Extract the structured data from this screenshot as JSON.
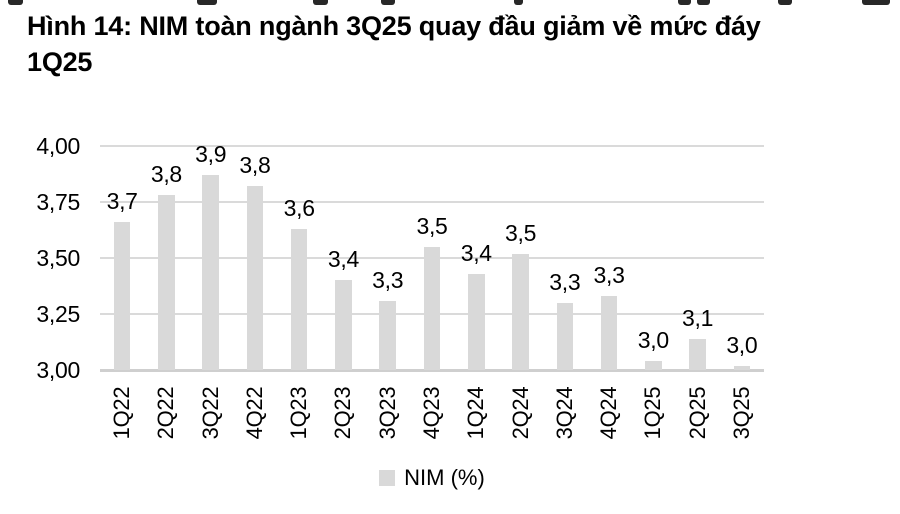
{
  "title": {
    "line1": "Hình 14: NIM toàn ngành 3Q25 quay đầu giảm về mức đáy",
    "line2": "1Q25"
  },
  "chart_data": {
    "type": "bar",
    "title": "Hình 14: NIM toàn ngành 3Q25 quay đầu giảm về mức đáy 1Q25",
    "categories": [
      "1Q22",
      "2Q22",
      "3Q22",
      "4Q22",
      "1Q23",
      "2Q23",
      "3Q23",
      "4Q23",
      "1Q24",
      "2Q24",
      "3Q24",
      "4Q24",
      "1Q25",
      "2Q25",
      "3Q25"
    ],
    "values": [
      3.66,
      3.78,
      3.87,
      3.82,
      3.63,
      3.4,
      3.31,
      3.55,
      3.43,
      3.52,
      3.3,
      3.33,
      3.04,
      3.14,
      3.02
    ],
    "data_labels": [
      "3,7",
      "3,8",
      "3,9",
      "3,8",
      "3,6",
      "3,4",
      "3,3",
      "3,5",
      "3,4",
      "3,5",
      "3,3",
      "3,3",
      "3,0",
      "3,1",
      "3,0"
    ],
    "xlabel": "",
    "ylabel": "",
    "ylim": [
      3.0,
      4.0
    ],
    "yticks": [
      {
        "value": 4.0,
        "label": "4,00"
      },
      {
        "value": 3.75,
        "label": "3,75"
      },
      {
        "value": 3.5,
        "label": "3,50"
      },
      {
        "value": 3.25,
        "label": "3,25"
      },
      {
        "value": 3.0,
        "label": "3,00"
      }
    ],
    "grid": true,
    "legend_position": "bottom",
    "legend": [
      {
        "label": "NIM (%)",
        "swatch_color": "#d9d9d9"
      }
    ],
    "colors": {
      "bar": "#d9d9d9",
      "gridline": "#dadada",
      "axis_line": "#cfcfcf",
      "text": "#000000"
    }
  }
}
